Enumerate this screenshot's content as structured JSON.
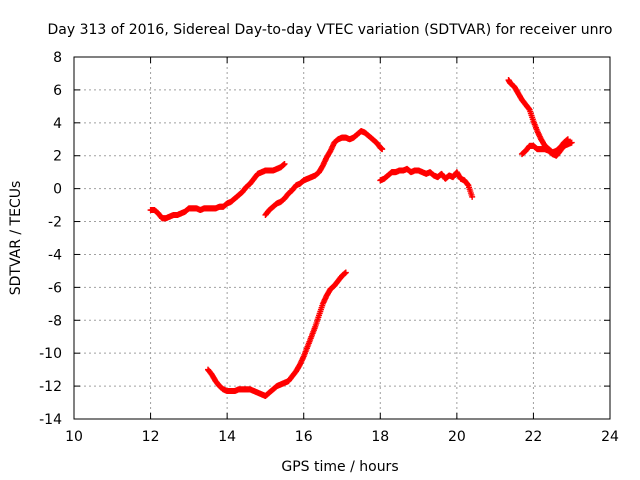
{
  "chart_data": {
    "type": "scatter",
    "title": "Day 313 of 2016, Sidereal Day-to-day VTEC variation (SDTVAR) for receiver unro",
    "xlabel": "GPS time / hours",
    "ylabel": "SDTVAR / TECUs",
    "xlim": [
      10,
      24
    ],
    "ylim": [
      -14,
      8
    ],
    "xticks": [
      10,
      12,
      14,
      16,
      18,
      20,
      22,
      24
    ],
    "yticks": [
      -14,
      -12,
      -10,
      -8,
      -6,
      -4,
      -2,
      0,
      2,
      4,
      6,
      8
    ],
    "grid": true,
    "marker": "plus",
    "color": "#ff0000",
    "segments": [
      {
        "points": [
          [
            12.0,
            -1.3
          ],
          [
            12.1,
            -1.3
          ],
          [
            12.2,
            -1.5
          ],
          [
            12.3,
            -1.8
          ],
          [
            12.4,
            -1.8
          ],
          [
            12.5,
            -1.7
          ],
          [
            12.6,
            -1.6
          ],
          [
            12.7,
            -1.6
          ],
          [
            12.8,
            -1.5
          ],
          [
            12.9,
            -1.4
          ],
          [
            13.0,
            -1.2
          ],
          [
            13.1,
            -1.2
          ],
          [
            13.2,
            -1.2
          ],
          [
            13.3,
            -1.3
          ],
          [
            13.4,
            -1.2
          ],
          [
            13.5,
            -1.2
          ],
          [
            13.6,
            -1.2
          ],
          [
            13.7,
            -1.2
          ],
          [
            13.8,
            -1.1
          ],
          [
            13.9,
            -1.1
          ],
          [
            14.0,
            -0.9
          ],
          [
            14.1,
            -0.8
          ],
          [
            14.2,
            -0.6
          ],
          [
            14.3,
            -0.4
          ],
          [
            14.4,
            -0.2
          ],
          [
            14.5,
            0.1
          ],
          [
            14.6,
            0.3
          ],
          [
            14.7,
            0.6
          ],
          [
            14.8,
            0.9
          ],
          [
            14.9,
            1.0
          ],
          [
            15.0,
            1.1
          ],
          [
            15.1,
            1.1
          ],
          [
            15.2,
            1.1
          ],
          [
            15.3,
            1.2
          ],
          [
            15.4,
            1.3
          ],
          [
            15.5,
            1.5
          ]
        ]
      },
      {
        "points": [
          [
            15.0,
            -1.6
          ],
          [
            15.1,
            -1.3
          ],
          [
            15.2,
            -1.1
          ],
          [
            15.3,
            -0.9
          ],
          [
            15.4,
            -0.8
          ],
          [
            15.5,
            -0.6
          ],
          [
            15.6,
            -0.3
          ],
          [
            15.7,
            -0.1
          ],
          [
            15.8,
            0.2
          ],
          [
            15.9,
            0.3
          ],
          [
            16.0,
            0.5
          ],
          [
            16.1,
            0.6
          ],
          [
            16.2,
            0.7
          ],
          [
            16.3,
            0.8
          ],
          [
            16.4,
            1.0
          ],
          [
            16.5,
            1.4
          ],
          [
            16.6,
            1.9
          ],
          [
            16.7,
            2.3
          ],
          [
            16.8,
            2.8
          ],
          [
            16.9,
            3.0
          ],
          [
            17.0,
            3.1
          ],
          [
            17.1,
            3.1
          ],
          [
            17.2,
            3.0
          ],
          [
            17.3,
            3.1
          ],
          [
            17.4,
            3.3
          ],
          [
            17.5,
            3.5
          ],
          [
            17.6,
            3.4
          ],
          [
            17.7,
            3.2
          ],
          [
            17.8,
            3.0
          ],
          [
            17.9,
            2.8
          ],
          [
            18.0,
            2.5
          ],
          [
            18.05,
            2.4
          ]
        ]
      },
      {
        "points": [
          [
            18.0,
            0.5
          ],
          [
            18.1,
            0.6
          ],
          [
            18.2,
            0.8
          ],
          [
            18.3,
            1.0
          ],
          [
            18.4,
            1.0
          ],
          [
            18.5,
            1.1
          ],
          [
            18.6,
            1.1
          ],
          [
            18.7,
            1.2
          ],
          [
            18.8,
            1.0
          ],
          [
            18.9,
            1.1
          ],
          [
            19.0,
            1.1
          ],
          [
            19.1,
            1.0
          ],
          [
            19.2,
            0.9
          ],
          [
            19.3,
            1.0
          ],
          [
            19.4,
            0.8
          ],
          [
            19.5,
            0.7
          ],
          [
            19.6,
            0.9
          ],
          [
            19.7,
            0.6
          ],
          [
            19.8,
            0.8
          ],
          [
            19.9,
            0.7
          ],
          [
            20.0,
            1.0
          ],
          [
            20.1,
            0.6
          ],
          [
            20.2,
            0.5
          ],
          [
            20.3,
            0.2
          ],
          [
            20.4,
            -0.5
          ]
        ]
      },
      {
        "points": [
          [
            13.5,
            -11.0
          ],
          [
            13.6,
            -11.3
          ],
          [
            13.7,
            -11.7
          ],
          [
            13.8,
            -12.0
          ],
          [
            13.9,
            -12.2
          ],
          [
            14.0,
            -12.3
          ],
          [
            14.1,
            -12.3
          ],
          [
            14.2,
            -12.3
          ],
          [
            14.3,
            -12.2
          ],
          [
            14.4,
            -12.2
          ],
          [
            14.5,
            -12.2
          ],
          [
            14.6,
            -12.2
          ],
          [
            14.7,
            -12.3
          ],
          [
            14.8,
            -12.4
          ],
          [
            14.9,
            -12.5
          ],
          [
            15.0,
            -12.6
          ],
          [
            15.1,
            -12.4
          ],
          [
            15.2,
            -12.2
          ],
          [
            15.3,
            -12.0
          ],
          [
            15.4,
            -11.9
          ],
          [
            15.5,
            -11.8
          ],
          [
            15.6,
            -11.7
          ],
          [
            15.7,
            -11.4
          ],
          [
            15.8,
            -11.1
          ],
          [
            15.9,
            -10.7
          ],
          [
            16.0,
            -10.2
          ],
          [
            16.1,
            -9.6
          ],
          [
            16.2,
            -9.0
          ],
          [
            16.3,
            -8.4
          ],
          [
            16.4,
            -7.7
          ],
          [
            16.5,
            -7.0
          ],
          [
            16.6,
            -6.5
          ],
          [
            16.7,
            -6.1
          ],
          [
            16.8,
            -5.9
          ],
          [
            16.9,
            -5.6
          ],
          [
            17.0,
            -5.3
          ],
          [
            17.1,
            -5.1
          ]
        ]
      },
      {
        "points": [
          [
            21.35,
            6.6
          ],
          [
            21.4,
            6.4
          ],
          [
            21.5,
            6.2
          ],
          [
            21.6,
            5.8
          ],
          [
            21.7,
            5.4
          ],
          [
            21.8,
            5.1
          ],
          [
            21.9,
            4.8
          ],
          [
            22.0,
            4.1
          ],
          [
            22.1,
            3.5
          ],
          [
            22.2,
            3.0
          ],
          [
            22.3,
            2.6
          ],
          [
            22.4,
            2.4
          ],
          [
            22.5,
            2.2
          ],
          [
            22.6,
            2.3
          ],
          [
            22.7,
            2.5
          ],
          [
            22.8,
            2.8
          ],
          [
            22.9,
            3.0
          ]
        ]
      },
      {
        "points": [
          [
            21.7,
            2.1
          ],
          [
            21.8,
            2.3
          ],
          [
            21.9,
            2.6
          ],
          [
            22.0,
            2.6
          ],
          [
            22.1,
            2.4
          ],
          [
            22.2,
            2.4
          ],
          [
            22.3,
            2.4
          ],
          [
            22.4,
            2.3
          ],
          [
            22.5,
            2.1
          ],
          [
            22.6,
            2.0
          ],
          [
            22.7,
            2.3
          ],
          [
            22.8,
            2.6
          ],
          [
            22.9,
            2.7
          ],
          [
            23.0,
            2.8
          ]
        ]
      }
    ]
  }
}
